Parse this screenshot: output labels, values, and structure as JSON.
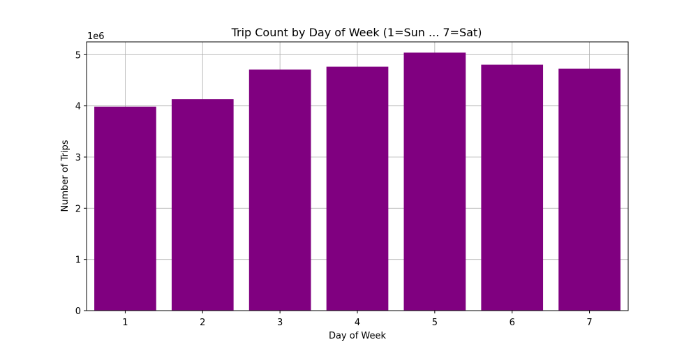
{
  "chart_data": {
    "type": "bar",
    "title": "Trip Count by Day of Week (1=Sun ... 7=Sat)",
    "xlabel": "Day of Week",
    "ylabel": "Number of Trips",
    "y_offset_label": "1e6",
    "categories": [
      "1",
      "2",
      "3",
      "4",
      "5",
      "6",
      "7"
    ],
    "values": [
      3985000,
      4130000,
      4710000,
      4765000,
      5040000,
      4805000,
      4725000
    ],
    "ylim": [
      0,
      5250000
    ],
    "yticks": [
      0,
      1000000,
      2000000,
      3000000,
      4000000,
      5000000
    ],
    "ytick_labels": [
      "0",
      "1",
      "2",
      "3",
      "4",
      "5"
    ],
    "grid": true,
    "bar_color": "#800080"
  }
}
